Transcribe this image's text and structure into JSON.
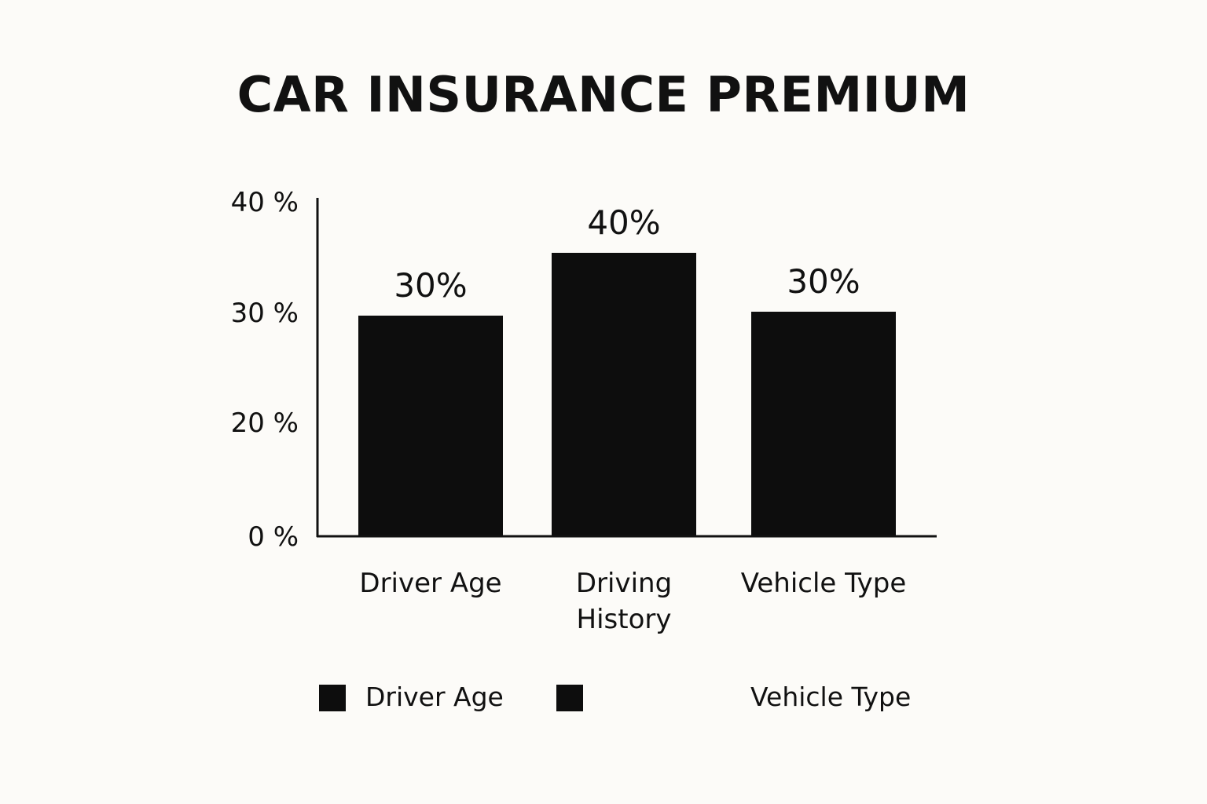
{
  "chart_data": {
    "type": "bar",
    "title": "CAR INSURANCE PREMIUM",
    "categories": [
      "Driver Age",
      "Driving History",
      "Vehicle Type"
    ],
    "values": [
      30,
      40,
      30
    ],
    "data_labels": [
      "30%",
      "40%",
      "30%"
    ],
    "y_ticks": [
      {
        "value": 0,
        "label": "0 %"
      },
      {
        "value": 20,
        "label": "20 %"
      },
      {
        "value": 30,
        "label": "30 %"
      },
      {
        "value": 40,
        "label": "40 %"
      }
    ],
    "xlabel": "",
    "ylabel": "",
    "grid": false,
    "bar_color": "#0d0d0d",
    "legend": {
      "placement": "bottom",
      "entries": [
        {
          "label": "Driver Age",
          "color": "#0d0d0d"
        },
        {
          "label": "",
          "color": "#0d0d0d"
        },
        {
          "label": "Vehicle Type",
          "color": null
        }
      ]
    }
  }
}
